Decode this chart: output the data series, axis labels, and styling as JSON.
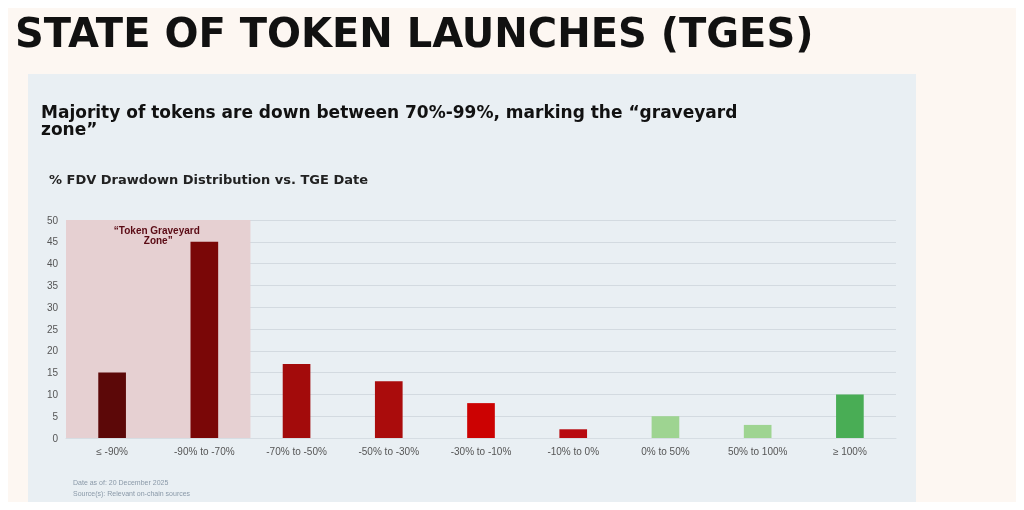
{
  "chart_data": {
    "type": "bar",
    "title": "STATE OF TOKEN LAUNCHES (TGES)",
    "subtitle": "Majority of tokens are down between 70%-99%, marking the “graveyard zone”",
    "xlabel": "% FDV Drawdown Distribution vs. TGE Date",
    "categories": [
      "≤ -90%",
      "-90% to -70%",
      "-70% to -50%",
      "-50% to -30%",
      "-30% to -10%",
      "-10% to 0%",
      "0% to 50%",
      "50% to 100%",
      "≥ 100%"
    ],
    "values": [
      15,
      45,
      17,
      13,
      8,
      2,
      5,
      3,
      10
    ],
    "colors": [
      "#5c0808",
      "#7a0707",
      "#a30b0b",
      "#aa0c0c",
      "#cc0202",
      "#b80a10",
      "#9ed491",
      "#9ed491",
      "#49ad55"
    ],
    "ylim": [
      0,
      50
    ],
    "yticks": [
      0,
      5,
      10,
      15,
      20,
      25,
      30,
      35,
      40,
      45,
      50
    ],
    "grid": "y",
    "bands": [
      {
        "axis": "x",
        "from": "≤ -90%",
        "to": "-90% to -70%",
        "label": "“Token Graveyard Zone”",
        "color": "#e6d0d2"
      }
    ],
    "annotations": [
      "Date as of: 20 December 2025",
      "Source(s): Relevant on-chain sources"
    ]
  }
}
